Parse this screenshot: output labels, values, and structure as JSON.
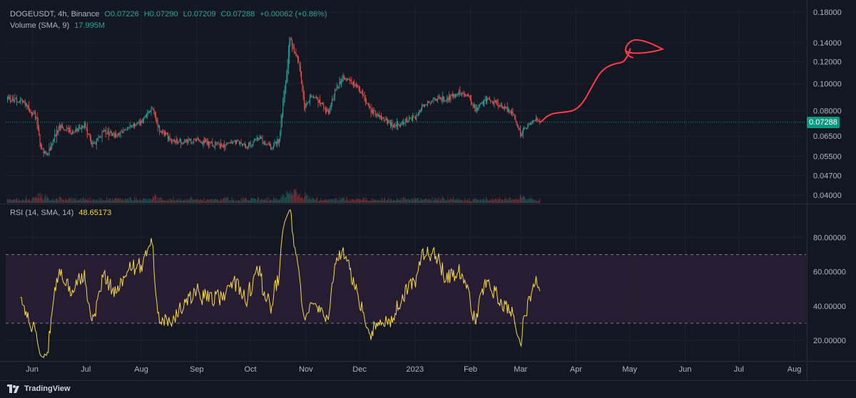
{
  "symbol_line": {
    "ticker": "DOGEUSDT, 4h, Binance",
    "open": "O0.07226",
    "high": "H0.07290",
    "low": "L0.07209",
    "close": "C0.07288",
    "change": "+0.00062 (+0.86%)"
  },
  "volume_line": {
    "label": "Volume (SMA, 9)",
    "value": "17.995M"
  },
  "rsi_line": {
    "label": "RSI (14, SMA, 14)",
    "value": "48.65173"
  },
  "last_price_label": "0.07288",
  "brand": "TradingView",
  "colors": {
    "background": "#131722",
    "up": "#26a69a",
    "down": "#ef5350",
    "rsi_line": "#f5d742",
    "rsi_band": "#2a1e35",
    "drawing": "#ff3b47",
    "last_price": "#089981"
  },
  "chart_data": [
    {
      "type": "candlestick",
      "scale": "log",
      "ylim": [
        0.0375,
        0.19
      ],
      "y_ticks": [
        "0.18000",
        "0.14000",
        "0.12000",
        "0.10000",
        "0.08000",
        "0.06500",
        "0.05500",
        "0.04700",
        "0.04000"
      ],
      "x_ticks": [
        "Jun",
        "Jul",
        "Aug",
        "Sep",
        "Oct",
        "Nov",
        "Dec",
        "2023",
        "Feb",
        "Mar",
        "Apr",
        "May",
        "Jun",
        "Jul",
        "Aug"
      ],
      "last_price": 0.07288,
      "trend": [
        [
          "2022-05-27",
          0.088
        ],
        [
          "2022-06-05",
          0.086
        ],
        [
          "2022-06-12",
          0.075
        ],
        [
          "2022-06-15",
          0.058
        ],
        [
          "2022-06-18",
          0.055
        ],
        [
          "2022-06-25",
          0.071
        ],
        [
          "2022-07-02",
          0.067
        ],
        [
          "2022-07-09",
          0.071
        ],
        [
          "2022-07-14",
          0.06
        ],
        [
          "2022-07-20",
          0.068
        ],
        [
          "2022-07-27",
          0.065
        ],
        [
          "2022-08-03",
          0.07
        ],
        [
          "2022-08-10",
          0.073
        ],
        [
          "2022-08-16",
          0.082
        ],
        [
          "2022-08-20",
          0.068
        ],
        [
          "2022-08-27",
          0.063
        ],
        [
          "2022-09-03",
          0.062
        ],
        [
          "2022-09-10",
          0.063
        ],
        [
          "2022-09-17",
          0.061
        ],
        [
          "2022-09-24",
          0.06
        ],
        [
          "2022-10-01",
          0.062
        ],
        [
          "2022-10-08",
          0.06
        ],
        [
          "2022-10-15",
          0.064
        ],
        [
          "2022-10-21",
          0.059
        ],
        [
          "2022-10-26",
          0.063
        ],
        [
          "2022-10-28",
          0.083
        ],
        [
          "2022-10-31",
          0.124
        ],
        [
          "2022-11-01",
          0.148
        ],
        [
          "2022-11-03",
          0.131
        ],
        [
          "2022-11-06",
          0.12
        ],
        [
          "2022-11-09",
          0.082
        ],
        [
          "2022-11-13",
          0.09
        ],
        [
          "2022-11-18",
          0.085
        ],
        [
          "2022-11-22",
          0.079
        ],
        [
          "2022-11-27",
          0.097
        ],
        [
          "2022-12-01",
          0.105
        ],
        [
          "2022-12-06",
          0.101
        ],
        [
          "2022-12-11",
          0.093
        ],
        [
          "2022-12-16",
          0.08
        ],
        [
          "2022-12-22",
          0.076
        ],
        [
          "2022-12-28",
          0.071
        ],
        [
          "2023-01-04",
          0.073
        ],
        [
          "2023-01-10",
          0.076
        ],
        [
          "2023-01-15",
          0.085
        ],
        [
          "2023-01-22",
          0.088
        ],
        [
          "2023-01-29",
          0.089
        ],
        [
          "2023-02-03",
          0.093
        ],
        [
          "2023-02-08",
          0.091
        ],
        [
          "2023-02-13",
          0.081
        ],
        [
          "2023-02-19",
          0.088
        ],
        [
          "2023-02-25",
          0.085
        ],
        [
          "2023-03-02",
          0.081
        ],
        [
          "2023-03-06",
          0.077
        ],
        [
          "2023-03-10",
          0.066
        ],
        [
          "2023-03-13",
          0.07
        ],
        [
          "2023-03-18",
          0.075
        ],
        [
          "2023-03-21",
          0.0729
        ]
      ],
      "volume_spikes": [
        [
          "2022-06-14",
          2.2
        ],
        [
          "2022-08-16",
          1.8
        ],
        [
          "2022-10-30",
          3.2
        ],
        [
          "2022-11-01",
          4.5
        ],
        [
          "2022-11-05",
          2.6
        ],
        [
          "2022-11-09",
          2.2
        ],
        [
          "2023-03-10",
          1.7
        ]
      ]
    },
    {
      "type": "line",
      "name": "RSI (14, SMA, 14)",
      "ylim": [
        8,
        98
      ],
      "y_ticks": [
        "80.00000",
        "60.00000",
        "40.00000",
        "20.00000"
      ],
      "bands": [
        30,
        70
      ],
      "last_value": 48.65173
    },
    {
      "type": "annotation",
      "kind": "freehand-projection",
      "path": [
        [
          "2023-03-21",
          0.0729
        ],
        [
          "2023-03-26",
          0.078
        ],
        [
          "2023-04-02",
          0.079
        ],
        [
          "2023-04-09",
          0.08
        ],
        [
          "2023-04-14",
          0.086
        ],
        [
          "2023-04-18",
          0.096
        ],
        [
          "2023-04-24",
          0.112
        ],
        [
          "2023-05-01",
          0.118
        ],
        [
          "2023-05-06",
          0.119
        ],
        [
          "2023-05-08",
          0.124
        ],
        [
          "2023-05-09",
          0.127
        ],
        [
          "2023-05-10",
          0.133
        ]
      ],
      "loop_center": [
        "2023-05-13",
        0.1345
      ]
    }
  ]
}
